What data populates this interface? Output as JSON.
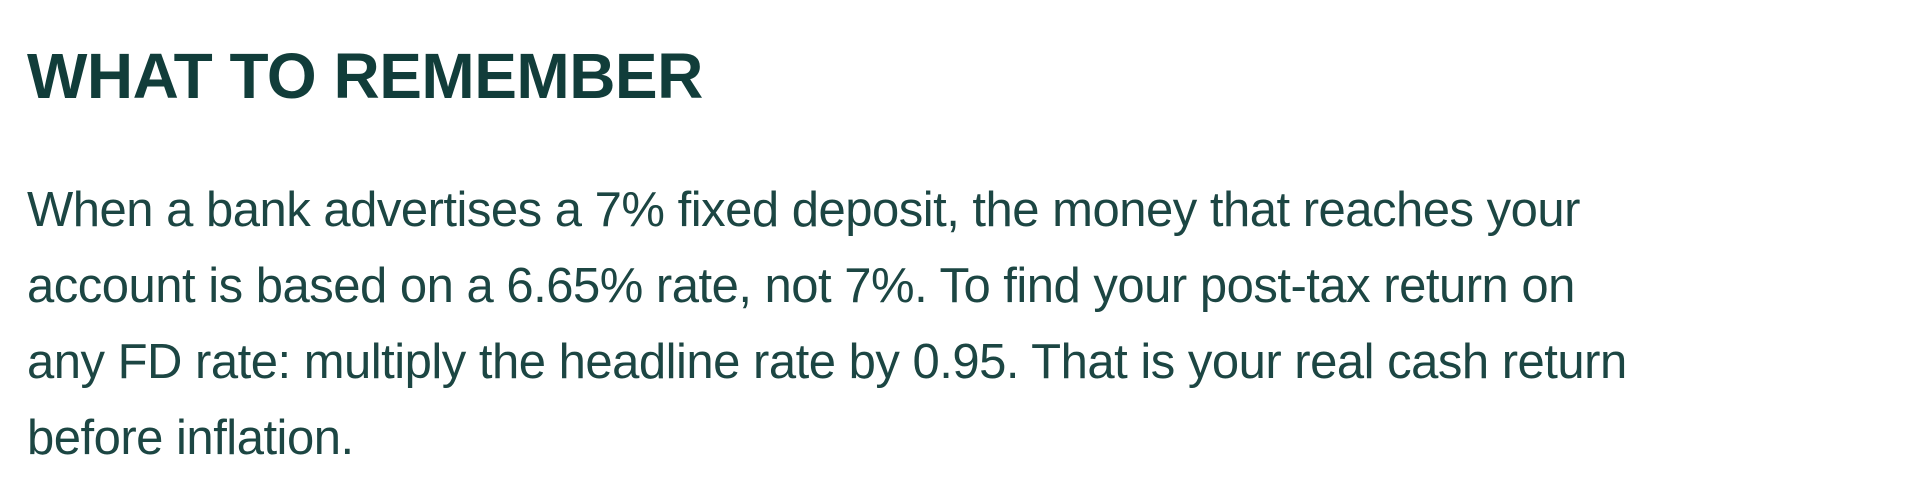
{
  "heading": {
    "text": "WHAT TO REMEMBER"
  },
  "paragraph": {
    "lines": [
      "When a bank advertises a 7% fixed deposit, the money that reaches your",
      "account is based on a 6.65% rate, not 7%. To find your post-tax return on",
      "any FD rate: multiply the headline rate by 0.95. That is your real cash return",
      "before inflation."
    ]
  },
  "colors": {
    "heading": "#113D3A",
    "body": "#1C4643",
    "background": "#FFFFFF"
  }
}
